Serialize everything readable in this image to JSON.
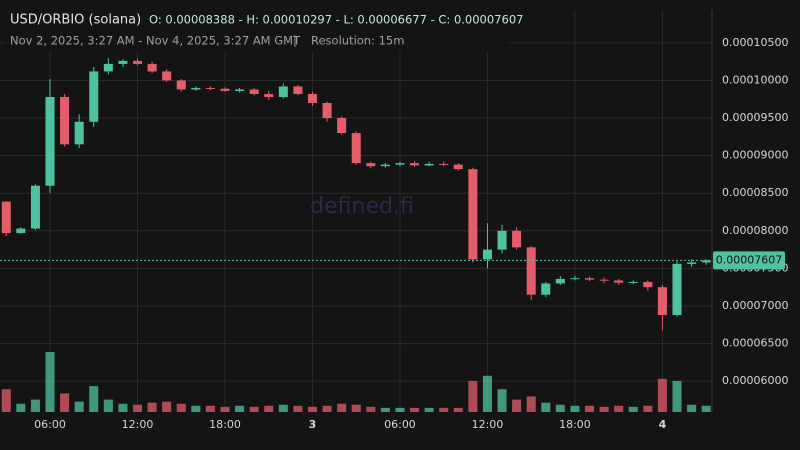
{
  "chart_data": {
    "type": "candlestick",
    "title": "USD/ORBIO (solana)",
    "ohlc_summary": "O: 0.00008388 - H: 0.00010297 - L: 0.00006677 - C: 0.00007607",
    "subtitle": "Nov 2, 2025, 3:27 AM - Nov 4, 2025, 3:27 AM GMT",
    "separator": "|",
    "resolution": "Resolution: 15m",
    "watermark": "defined.fi",
    "up_color": "#4fc3a1",
    "down_color": "#e35d6a",
    "grid": true,
    "x": [
      3,
      4,
      5,
      6,
      7,
      8,
      9,
      10,
      11,
      12,
      13,
      14,
      15,
      16,
      17,
      18,
      19,
      20,
      21,
      22,
      23,
      24,
      25,
      26,
      27,
      28,
      29,
      30,
      31,
      32,
      33,
      34,
      35,
      36,
      37,
      38,
      39,
      40,
      41,
      42,
      43,
      44,
      45,
      46,
      47,
      48,
      49,
      50,
      51
    ],
    "open": [
      8.388e-05,
      7.97e-05,
      8.03e-05,
      8.6e-05,
      9.78e-05,
      9.15e-05,
      9.45e-05,
      0.0001012,
      0.0001022,
      0.0001026,
      0.0001022,
      0.0001012,
      0.0001,
      9.88e-05,
      9.9e-05,
      9.89e-05,
      9.86e-05,
      9.88e-05,
      9.82e-05,
      9.78e-05,
      9.92e-05,
      9.82e-05,
      9.7e-05,
      9.5e-05,
      9.3e-05,
      8.9e-05,
      8.86e-05,
      8.88e-05,
      8.9e-05,
      8.87e-05,
      8.89e-05,
      8.88e-05,
      8.82e-05,
      7.62e-05,
      7.75e-05,
      8e-05,
      7.78e-05,
      7.15e-05,
      7.3e-05,
      7.36e-05,
      7.37e-05,
      7.35e-05,
      7.34e-05,
      7.31e-05,
      7.32e-05,
      7.25e-05,
      6.88e-05,
      7.56e-05,
      7.58e-05
    ],
    "high": [
      8.4e-05,
      8.05e-05,
      8.62e-05,
      0.0001002,
      9.82e-05,
      9.55e-05,
      0.0001018,
      0.00010297,
      0.0001028,
      0.0001029,
      0.0001025,
      0.0001015,
      0.0001002,
      9.92e-05,
      9.92e-05,
      9.91e-05,
      9.9e-05,
      9.9e-05,
      9.86e-05,
      9.96e-05,
      9.94e-05,
      9.85e-05,
      9.72e-05,
      9.52e-05,
      9.32e-05,
      8.92e-05,
      8.9e-05,
      8.92e-05,
      8.93e-05,
      8.92e-05,
      8.92e-05,
      8.9e-05,
      8.84e-05,
      8.1e-05,
      8.08e-05,
      8.05e-05,
      7.8e-05,
      7.32e-05,
      7.4e-05,
      7.4e-05,
      7.39e-05,
      7.38e-05,
      7.36e-05,
      7.34e-05,
      7.34e-05,
      7.28e-05,
      7.6e-05,
      7.62e-05,
      7.62e-05
    ],
    "low": [
      7.93e-05,
      7.96e-05,
      8.01e-05,
      8.5e-05,
      9.12e-05,
      9.1e-05,
      9.38e-05,
      0.0001008,
      0.0001018,
      0.000102,
      0.000101,
      9.98e-05,
      9.85e-05,
      9.86e-05,
      9.87e-05,
      9.85e-05,
      9.84e-05,
      9.8e-05,
      9.74e-05,
      9.76e-05,
      9.8e-05,
      9.66e-05,
      9.45e-05,
      9.28e-05,
      8.88e-05,
      8.83e-05,
      8.84e-05,
      8.86e-05,
      8.85e-05,
      8.86e-05,
      8.86e-05,
      8.8e-05,
      7.58e-05,
      7.5e-05,
      7.7e-05,
      7.75e-05,
      7.08e-05,
      7.12e-05,
      7.28e-05,
      7.34e-05,
      7.33e-05,
      7.3e-05,
      7.28e-05,
      7.29e-05,
      7.2e-05,
      6.677e-05,
      6.86e-05,
      7.52e-05,
      7.55e-05
    ],
    "close": [
      7.97e-05,
      8.03e-05,
      8.6e-05,
      9.78e-05,
      9.15e-05,
      9.45e-05,
      0.0001012,
      0.0001022,
      0.0001026,
      0.0001022,
      0.0001012,
      0.0001,
      9.88e-05,
      9.9e-05,
      9.89e-05,
      9.86e-05,
      9.88e-05,
      9.82e-05,
      9.78e-05,
      9.92e-05,
      9.82e-05,
      9.7e-05,
      9.5e-05,
      9.3e-05,
      8.9e-05,
      8.86e-05,
      8.88e-05,
      8.9e-05,
      8.87e-05,
      8.89e-05,
      8.88e-05,
      8.82e-05,
      7.62e-05,
      7.75e-05,
      8e-05,
      7.78e-05,
      7.15e-05,
      7.3e-05,
      7.36e-05,
      7.37e-05,
      7.35e-05,
      7.34e-05,
      7.31e-05,
      7.32e-05,
      7.25e-05,
      6.88e-05,
      7.56e-05,
      7.58e-05,
      7.607e-05
    ],
    "volumes": [
      22,
      8,
      12,
      58,
      18,
      10,
      25,
      12,
      8,
      7,
      9,
      10,
      8,
      6,
      6,
      5,
      6,
      5,
      6,
      7,
      6,
      5,
      6,
      8,
      7,
      5,
      4,
      4,
      4,
      4,
      4,
      4,
      30,
      35,
      22,
      12,
      15,
      9,
      7,
      6,
      6,
      5,
      6,
      5,
      6,
      32,
      30,
      7,
      6
    ],
    "last_price": {
      "value": 7.607e-05,
      "label": "0.00007607"
    },
    "xlim": [
      2.57,
      51.4
    ],
    "ylim": [
      5.59e-05,
      0.0001107
    ],
    "xticks": [
      {
        "value": 6,
        "label": "06:00"
      },
      {
        "value": 12,
        "label": "12:00"
      },
      {
        "value": 18,
        "label": "18:00"
      },
      {
        "value": 24,
        "label": "3"
      },
      {
        "value": 30,
        "label": "06:00"
      },
      {
        "value": 36,
        "label": "12:00"
      },
      {
        "value": 42,
        "label": "18:00"
      },
      {
        "value": 48,
        "label": "4"
      }
    ],
    "yticks": [
      {
        "value": 6e-05,
        "label": "0.00006000"
      },
      {
        "value": 6.5e-05,
        "label": "0.00006500"
      },
      {
        "value": 7e-05,
        "label": "0.00007000"
      },
      {
        "value": 7.5e-05,
        "label": "0.00007500"
      },
      {
        "value": 8e-05,
        "label": "0.00008000"
      },
      {
        "value": 8.5e-05,
        "label": "0.00008500"
      },
      {
        "value": 9e-05,
        "label": "0.00009000"
      },
      {
        "value": 9.5e-05,
        "label": "0.00009500"
      },
      {
        "value": 0.0001,
        "label": "0.00010000"
      },
      {
        "value": 0.000105,
        "label": "0.00010500"
      }
    ]
  }
}
